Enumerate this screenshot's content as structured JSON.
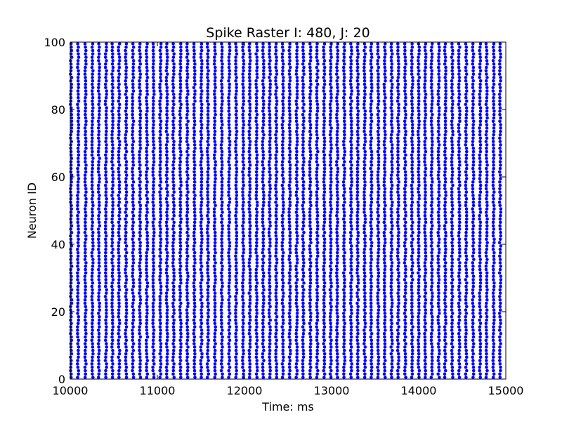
{
  "chart_data": {
    "type": "scatter",
    "title": "Spike Raster I: 480, J: 20",
    "xlabel": "Time: ms",
    "ylabel": "Neuron ID",
    "xlim": [
      10000,
      15000
    ],
    "ylim": [
      0,
      100
    ],
    "xticks": [
      10000,
      11000,
      12000,
      13000,
      14000,
      15000
    ],
    "yticks": [
      0,
      20,
      40,
      60,
      80,
      100
    ],
    "grid": false,
    "marker_color": "#0000ff",
    "marker_shape": "dot",
    "neurons": {
      "first": 0,
      "last": 99
    },
    "burst_times": [
      10010,
      10090,
      10175,
      10255,
      10330,
      10410,
      10485,
      10560,
      10640,
      10720,
      10800,
      10880,
      10955,
      11035,
      11110,
      11185,
      11265,
      11345,
      11425,
      11505,
      11580,
      11660,
      11740,
      11825,
      11905,
      11985,
      12060,
      12140,
      12215,
      12290,
      12365,
      12440,
      12520,
      12600,
      12675,
      12755,
      12835,
      12915,
      12990,
      13065,
      13145,
      13225,
      13300,
      13380,
      13455,
      13535,
      13610,
      13690,
      13765,
      13845,
      13925,
      14000,
      14075,
      14150,
      14230,
      14305,
      14385,
      14465,
      14545,
      14625,
      14705,
      14780,
      14860,
      14935
    ]
  }
}
